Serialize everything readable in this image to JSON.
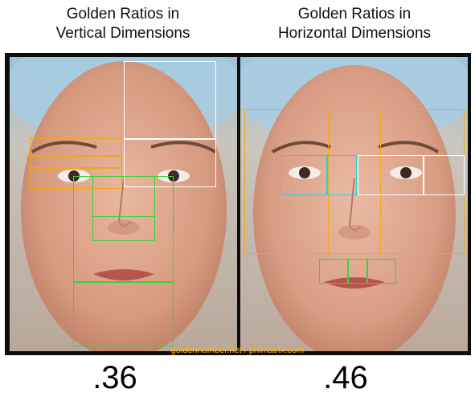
{
  "titles": {
    "left": "Golden Ratios in\nVertical Dimensions",
    "right": "Golden Ratios in\nHorizontal Dimensions"
  },
  "credit": "goldennumber.net / phimatrix.com",
  "scores": {
    "left": ".36",
    "right": ".46"
  },
  "colors": {
    "gold": "#f0a818",
    "green": "#3ad23a",
    "white": "#ffffff",
    "cyan": "#22d4e0",
    "frame": "#0d0d0d"
  }
}
